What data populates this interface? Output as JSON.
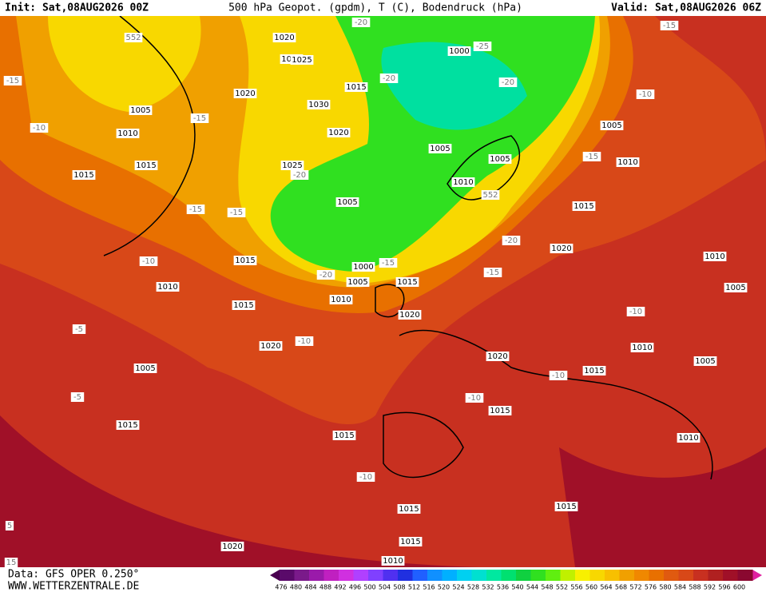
{
  "header": {
    "init": "Init: Sat,08AUG2026 00Z",
    "title": "500 hPa Geopot. (gpdm), T (C), Bodendruck (hPa)",
    "valid": "Valid: Sat,08AUG2026 06Z"
  },
  "footer": {
    "data_source": "Data: GFS OPER 0.250°",
    "site": "WWW.WETTERZENTRALE.DE"
  },
  "colorbar": {
    "labels": [
      "476",
      "480",
      "484",
      "488",
      "492",
      "496",
      "500",
      "504",
      "508",
      "512",
      "516",
      "520",
      "524",
      "528",
      "532",
      "536",
      "540",
      "544",
      "548",
      "552",
      "556",
      "560",
      "564",
      "568",
      "572",
      "576",
      "580",
      "584",
      "588",
      "592",
      "596",
      "600"
    ],
    "colors": [
      "#5a0a6a",
      "#7a1a8a",
      "#9a1aaa",
      "#c020c0",
      "#d030e0",
      "#b040ff",
      "#8040ff",
      "#5030f0",
      "#2030e0",
      "#2060ff",
      "#1090ff",
      "#00b0ff",
      "#00d0f0",
      "#00e0d0",
      "#00e8a0",
      "#00e070",
      "#10d040",
      "#30e020",
      "#60ef10",
      "#c0f000",
      "#f8f000",
      "#f8d800",
      "#f8c000",
      "#f0a000",
      "#f08800",
      "#e87000",
      "#e05a10",
      "#d84818",
      "#c83020",
      "#b02020",
      "#a01028",
      "#8a0830"
    ]
  },
  "map_labels": [
    "552",
    "1020",
    "1010",
    "1025",
    "1000",
    "-25",
    "-20",
    "-15",
    "-15",
    "1015",
    "1020",
    "1030",
    "-20",
    "-20",
    "-10",
    "1005",
    "-15",
    "1010",
    "1005",
    "1020",
    "-10",
    "1015",
    "1025",
    "-20",
    "1005",
    "1005",
    "-15",
    "1010",
    "1015",
    "1010",
    "552",
    "1005",
    "1015",
    "-15",
    "-15",
    "-20",
    "1020",
    "1015",
    "-10",
    "1000",
    "-15",
    "-20",
    "1005",
    "1015",
    "-15",
    "1010",
    "1010",
    "1005",
    "1015",
    "1010",
    "1020",
    "-10",
    "-5",
    "-10",
    "1020",
    "1010",
    "1005",
    "1020",
    "1015",
    "-10",
    "1005",
    "-5",
    "-10",
    "1015",
    "1015",
    "1015",
    "1010",
    "-10",
    "1015",
    "1015",
    "5",
    "1015",
    "1020",
    "1010",
    "15"
  ]
}
